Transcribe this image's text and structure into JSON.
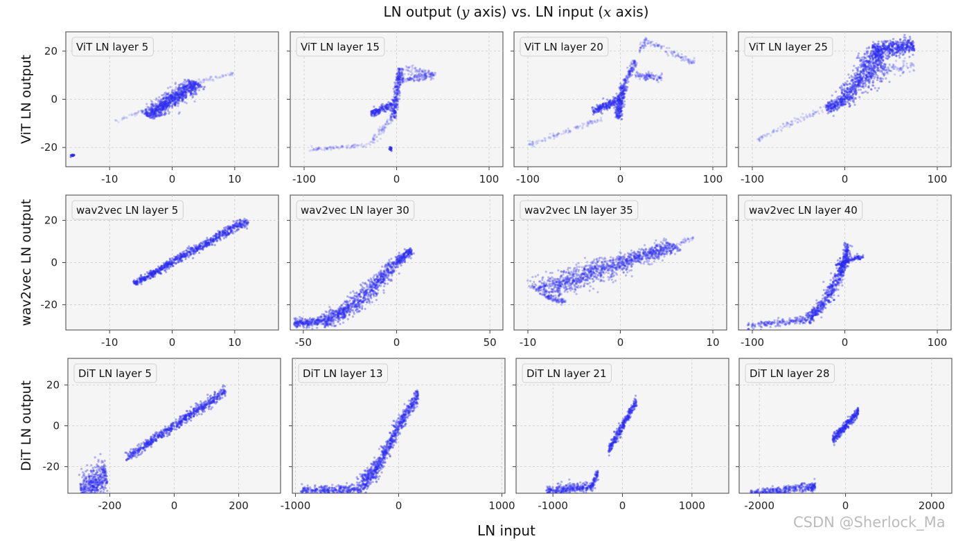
{
  "figure": {
    "title_prefix": "LN output (",
    "title_var_y": "y",
    "title_mid": " axis) vs. LN input (",
    "title_var_x": "x",
    "title_suffix": " axis)",
    "xlabel": "LN input",
    "watermark": "CSDN @Sherlock_Ma"
  },
  "colors": {
    "points": "#2b2bf0",
    "panel": "#f5f5f5",
    "grid": "#c8c8c8"
  },
  "chart_data": [
    {
      "type": "scatter",
      "row": 0,
      "col": 0,
      "row_label": "ViT LN output",
      "title": "ViT LN layer 5",
      "xlim": [
        -17,
        17
      ],
      "ylim": [
        -28,
        28
      ],
      "xticks": [
        -10,
        0,
        10
      ],
      "xtick_labels": [
        "-10",
        "0",
        "10"
      ],
      "yticks": [
        -20,
        0,
        20
      ],
      "ytick_labels": [
        "-20",
        "0",
        "20"
      ],
      "segments": [
        {
          "x0": -9,
          "y0": -9,
          "x1": 0,
          "y1": 0,
          "w": 0.4,
          "n": 60,
          "a": 0.12
        },
        {
          "x0": -4,
          "y0": -7,
          "x1": 0,
          "y1": 0,
          "w": 2.0,
          "n": 500,
          "a": 0.3
        },
        {
          "x0": 0,
          "y0": 0,
          "x1": 4,
          "y1": 7,
          "w": 2.0,
          "n": 500,
          "a": 0.3
        },
        {
          "x0": 4,
          "y0": 7,
          "x1": 10,
          "y1": 11,
          "w": 0.6,
          "n": 60,
          "a": 0.12
        },
        {
          "x0": -16,
          "y0": -23,
          "x1": -15.8,
          "y1": -23.5,
          "w": 0.5,
          "n": 20,
          "a": 0.6
        }
      ]
    },
    {
      "type": "scatter",
      "row": 0,
      "col": 1,
      "row_label": "ViT LN output",
      "title": "ViT LN layer 15",
      "xlim": [
        -115,
        115
      ],
      "ylim": [
        -28,
        28
      ],
      "xticks": [
        -100,
        0,
        100
      ],
      "xtick_labels": [
        "-100",
        "0",
        "100"
      ],
      "yticks": [
        -20,
        0,
        20
      ],
      "ytick_labels": [
        "-20",
        "0",
        "20"
      ],
      "segments": [
        {
          "x0": -95,
          "y0": -21,
          "x1": -30,
          "y1": -19,
          "w": 0.5,
          "n": 90,
          "a": 0.15
        },
        {
          "x0": -30,
          "y0": -19,
          "x1": -5,
          "y1": -8,
          "w": 0.8,
          "n": 80,
          "a": 0.15
        },
        {
          "x0": -4,
          "y0": -8,
          "x1": 4,
          "y1": 13,
          "w": 0.8,
          "n": 250,
          "a": 0.35
        },
        {
          "x0": -28,
          "y0": -6,
          "x1": -5,
          "y1": -2,
          "w": 0.8,
          "n": 150,
          "a": 0.4
        },
        {
          "x0": 5,
          "y0": 8,
          "x1": 40,
          "y1": 10,
          "w": 1.0,
          "n": 120,
          "a": 0.25
        },
        {
          "x0": 10,
          "y0": 13,
          "x1": 42,
          "y1": 10,
          "w": 0.8,
          "n": 70,
          "a": 0.2
        },
        {
          "x0": -7,
          "y0": -21,
          "x1": -6,
          "y1": -20,
          "w": 0.5,
          "n": 15,
          "a": 0.6
        }
      ]
    },
    {
      "type": "scatter",
      "row": 0,
      "col": 2,
      "row_label": "ViT LN output",
      "title": "ViT LN layer 20",
      "xlim": [
        -115,
        115
      ],
      "ylim": [
        -28,
        28
      ],
      "xticks": [
        -100,
        0,
        100
      ],
      "xtick_labels": [
        "-100",
        "0",
        "100"
      ],
      "yticks": [
        -20,
        0,
        20
      ],
      "ytick_labels": [
        "-20",
        "0",
        "20"
      ],
      "segments": [
        {
          "x0": -100,
          "y0": -19,
          "x1": -20,
          "y1": -8,
          "w": 0.6,
          "n": 110,
          "a": 0.15
        },
        {
          "x0": -30,
          "y0": -5,
          "x1": 0,
          "y1": 0,
          "w": 1.0,
          "n": 200,
          "a": 0.4
        },
        {
          "x0": -3,
          "y0": -8,
          "x1": 4,
          "y1": 6,
          "w": 1.0,
          "n": 250,
          "a": 0.35
        },
        {
          "x0": 4,
          "y0": 6,
          "x1": 16,
          "y1": 16,
          "w": 0.8,
          "n": 100,
          "a": 0.3
        },
        {
          "x0": 15,
          "y0": 10,
          "x1": 45,
          "y1": 9,
          "w": 0.8,
          "n": 100,
          "a": 0.25
        },
        {
          "x0": 20,
          "y0": 20,
          "x1": 30,
          "y1": 25,
          "w": 0.8,
          "n": 40,
          "a": 0.2
        },
        {
          "x0": 30,
          "y0": 24,
          "x1": 80,
          "y1": 15,
          "w": 0.8,
          "n": 90,
          "a": 0.2
        }
      ]
    },
    {
      "type": "scatter",
      "row": 0,
      "col": 3,
      "row_label": "ViT LN output",
      "title": "ViT LN layer 25",
      "xlim": [
        -115,
        115
      ],
      "ylim": [
        -28,
        28
      ],
      "xticks": [
        -100,
        0,
        100
      ],
      "xtick_labels": [
        "-100",
        "0",
        "100"
      ],
      "yticks": [
        -20,
        0,
        20
      ],
      "ytick_labels": [
        "-20",
        "0",
        "20"
      ],
      "segments": [
        {
          "x0": -95,
          "y0": -17,
          "x1": -20,
          "y1": -3,
          "w": 0.8,
          "n": 100,
          "a": 0.15
        },
        {
          "x0": -20,
          "y0": -4,
          "x1": 0,
          "y1": 0,
          "w": 1.5,
          "n": 200,
          "a": 0.35
        },
        {
          "x0": 0,
          "y0": 0,
          "x1": 20,
          "y1": 10,
          "w": 2.5,
          "n": 300,
          "a": 0.35
        },
        {
          "x0": 20,
          "y0": 10,
          "x1": 40,
          "y1": 18,
          "w": 4.0,
          "n": 400,
          "a": 0.35
        },
        {
          "x0": 30,
          "y0": 20,
          "x1": 75,
          "y1": 22,
          "w": 2.0,
          "n": 400,
          "a": 0.4
        },
        {
          "x0": 40,
          "y0": 12,
          "x1": 75,
          "y1": 14,
          "w": 1.5,
          "n": 80,
          "a": 0.2
        }
      ]
    },
    {
      "type": "scatter",
      "row": 1,
      "col": 0,
      "row_label": "wav2vec LN output",
      "title": "wav2vec LN layer 5",
      "xlim": [
        -17,
        17
      ],
      "ylim": [
        -32,
        32
      ],
      "xticks": [
        -10,
        0,
        10
      ],
      "xtick_labels": [
        "-10",
        "0",
        "10"
      ],
      "yticks": [
        -20,
        0,
        20
      ],
      "ytick_labels": [
        "-20",
        "0",
        "20"
      ],
      "segments": [
        {
          "x0": -6,
          "y0": -10,
          "x1": 0,
          "y1": 0,
          "w": 0.9,
          "n": 300,
          "a": 0.4
        },
        {
          "x0": 0,
          "y0": 0,
          "x1": 12,
          "y1": 20,
          "w": 1.2,
          "n": 500,
          "a": 0.4
        }
      ]
    },
    {
      "type": "scatter",
      "row": 1,
      "col": 1,
      "row_label": "wav2vec LN output",
      "title": "wav2vec LN layer 30",
      "xlim": [
        -57,
        57
      ],
      "ylim": [
        -32,
        32
      ],
      "xticks": [
        -50,
        0,
        50
      ],
      "xtick_labels": [
        "-50",
        "0",
        "50"
      ],
      "yticks": [
        -20,
        0,
        20
      ],
      "ytick_labels": [
        "-20",
        "0",
        "20"
      ],
      "segments": [
        {
          "x0": -55,
          "y0": -29,
          "x1": -40,
          "y1": -28,
          "w": 1.0,
          "n": 200,
          "a": 0.35
        },
        {
          "x0": -40,
          "y0": -28,
          "x1": -25,
          "y1": -22,
          "w": 1.8,
          "n": 300,
          "a": 0.35
        },
        {
          "x0": -25,
          "y0": -22,
          "x1": -10,
          "y1": -9,
          "w": 2.0,
          "n": 300,
          "a": 0.35
        },
        {
          "x0": -10,
          "y0": -9,
          "x1": 0,
          "y1": 0,
          "w": 1.5,
          "n": 200,
          "a": 0.35
        },
        {
          "x0": 0,
          "y0": 0,
          "x1": 8,
          "y1": 6,
          "w": 1.0,
          "n": 150,
          "a": 0.4
        }
      ]
    },
    {
      "type": "scatter",
      "row": 1,
      "col": 2,
      "row_label": "wav2vec LN output",
      "title": "wav2vec LN layer 35",
      "xlim": [
        -11.5,
        11.5
      ],
      "ylim": [
        -32,
        32
      ],
      "xticks": [
        -10,
        0,
        10
      ],
      "xtick_labels": [
        "-10",
        "0",
        "10"
      ],
      "yticks": [
        -20,
        0,
        20
      ],
      "ytick_labels": [
        "-20",
        "0",
        "20"
      ],
      "segments": [
        {
          "x0": -9,
          "y0": -14,
          "x1": 0,
          "y1": 0,
          "w": 3.5,
          "n": 800,
          "a": 0.3
        },
        {
          "x0": 0,
          "y0": 0,
          "x1": 6,
          "y1": 8,
          "w": 2.2,
          "n": 500,
          "a": 0.3
        },
        {
          "x0": 6,
          "y0": 8,
          "x1": 8,
          "y1": 12,
          "w": 0.8,
          "n": 40,
          "a": 0.15
        },
        {
          "x0": -8,
          "y0": -16,
          "x1": -6,
          "y1": -19,
          "w": 1.0,
          "n": 80,
          "a": 0.25
        }
      ]
    },
    {
      "type": "scatter",
      "row": 1,
      "col": 3,
      "row_label": "wav2vec LN output",
      "title": "wav2vec LN layer 40",
      "xlim": [
        -115,
        115
      ],
      "ylim": [
        -32,
        32
      ],
      "xticks": [
        -100,
        0,
        100
      ],
      "xtick_labels": [
        "-100",
        "0",
        "100"
      ],
      "yticks": [
        -20,
        0,
        20
      ],
      "ytick_labels": [
        "-20",
        "0",
        "20"
      ],
      "segments": [
        {
          "x0": -105,
          "y0": -30,
          "x1": -40,
          "y1": -27,
          "w": 0.8,
          "n": 150,
          "a": 0.35
        },
        {
          "x0": -40,
          "y0": -27,
          "x1": -20,
          "y1": -18,
          "w": 1.3,
          "n": 200,
          "a": 0.35
        },
        {
          "x0": -20,
          "y0": -18,
          "x1": -5,
          "y1": -5,
          "w": 1.5,
          "n": 200,
          "a": 0.35
        },
        {
          "x0": -5,
          "y0": -5,
          "x1": 0,
          "y1": 0,
          "w": 1.0,
          "n": 100,
          "a": 0.4
        },
        {
          "x0": -10,
          "y0": -1,
          "x1": 20,
          "y1": 3,
          "w": 0.6,
          "n": 120,
          "a": 0.4
        },
        {
          "x0": 0,
          "y0": 0,
          "x1": 3,
          "y1": 9,
          "w": 0.8,
          "n": 100,
          "a": 0.4
        }
      ]
    },
    {
      "type": "scatter",
      "row": 2,
      "col": 0,
      "row_label": "DiT LN output",
      "title": "DiT LN layer 5",
      "xlim": [
        -330,
        330
      ],
      "ylim": [
        -33,
        33
      ],
      "xticks": [
        -200,
        0,
        200
      ],
      "xtick_labels": [
        "-200",
        "0",
        "200"
      ],
      "yticks": [
        -20,
        0,
        20
      ],
      "ytick_labels": [
        "-20",
        "0",
        "20"
      ],
      "segments": [
        {
          "x0": -150,
          "y0": -16,
          "x1": 0,
          "y1": 0,
          "w": 1.0,
          "n": 300,
          "a": 0.4
        },
        {
          "x0": 0,
          "y0": 0,
          "x1": 160,
          "y1": 17,
          "w": 1.2,
          "n": 350,
          "a": 0.4
        },
        {
          "x0": -290,
          "y0": -32,
          "x1": -210,
          "y1": -24,
          "w": 4.0,
          "n": 450,
          "a": 0.35
        }
      ]
    },
    {
      "type": "scatter",
      "row": 2,
      "col": 1,
      "row_label": "DiT LN output",
      "title": "DiT LN layer 13",
      "xlim": [
        -1030,
        1030
      ],
      "ylim": [
        -33,
        33
      ],
      "xticks": [
        -1000,
        0,
        1000
      ],
      "xtick_labels": [
        "-1000",
        "0",
        "1000"
      ],
      "yticks": [
        -20,
        0,
        20
      ],
      "ytick_labels": [
        "-20",
        "0",
        "20"
      ],
      "segments": [
        {
          "x0": -950,
          "y0": -32,
          "x1": -400,
          "y1": -31,
          "w": 1.2,
          "n": 300,
          "a": 0.35
        },
        {
          "x0": -400,
          "y0": -31,
          "x1": -200,
          "y1": -20,
          "w": 2.5,
          "n": 300,
          "a": 0.35
        },
        {
          "x0": -200,
          "y0": -20,
          "x1": 0,
          "y1": 0,
          "w": 2.2,
          "n": 300,
          "a": 0.35
        },
        {
          "x0": 0,
          "y0": 0,
          "x1": 190,
          "y1": 15,
          "w": 1.8,
          "n": 250,
          "a": 0.35
        }
      ]
    },
    {
      "type": "scatter",
      "row": 2,
      "col": 2,
      "row_label": "DiT LN output",
      "title": "DiT LN layer 21",
      "xlim": [
        -1530,
        1530
      ],
      "ylim": [
        -33,
        33
      ],
      "xticks": [
        -1000,
        0,
        1000
      ],
      "xtick_labels": [
        "-1000",
        "0",
        "1000"
      ],
      "yticks": [
        -20,
        0,
        20
      ],
      "ytick_labels": [
        "-20",
        "0",
        "20"
      ],
      "segments": [
        {
          "x0": -1100,
          "y0": -32,
          "x1": -450,
          "y1": -30,
          "w": 1.2,
          "n": 300,
          "a": 0.35
        },
        {
          "x0": -450,
          "y0": -30,
          "x1": -350,
          "y1": -23,
          "w": 1.2,
          "n": 80,
          "a": 0.35
        },
        {
          "x0": -200,
          "y0": -12,
          "x1": 0,
          "y1": 0,
          "w": 1.2,
          "n": 150,
          "a": 0.4
        },
        {
          "x0": 0,
          "y0": 0,
          "x1": 200,
          "y1": 12,
          "w": 1.2,
          "n": 150,
          "a": 0.4
        }
      ]
    },
    {
      "type": "scatter",
      "row": 2,
      "col": 3,
      "row_label": "DiT LN output",
      "title": "DiT LN layer 28",
      "xlim": [
        -2470,
        2470
      ],
      "ylim": [
        -33,
        33
      ],
      "xticks": [
        -2000,
        0,
        2000
      ],
      "xtick_labels": [
        "-2000",
        "0",
        "2000"
      ],
      "yticks": [
        -20,
        0,
        20
      ],
      "ytick_labels": [
        "-20",
        "0",
        "20"
      ],
      "segments": [
        {
          "x0": -2200,
          "y0": -33,
          "x1": -800,
          "y1": -30,
          "w": 1.0,
          "n": 300,
          "a": 0.35
        },
        {
          "x0": -800,
          "y0": -31,
          "x1": -700,
          "y1": -29,
          "w": 1.0,
          "n": 50,
          "a": 0.35
        },
        {
          "x0": -300,
          "y0": -7,
          "x1": 0,
          "y1": 0,
          "w": 1.2,
          "n": 150,
          "a": 0.4
        },
        {
          "x0": 0,
          "y0": 0,
          "x1": 300,
          "y1": 7,
          "w": 1.2,
          "n": 150,
          "a": 0.4
        }
      ]
    }
  ]
}
